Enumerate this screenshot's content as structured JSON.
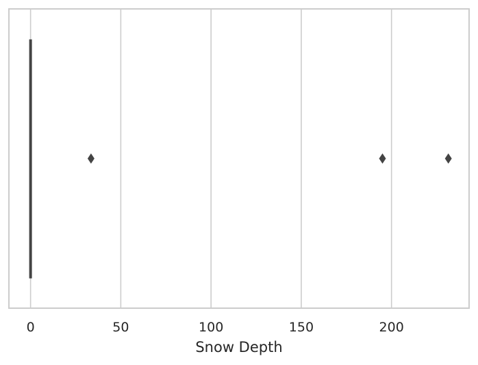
{
  "chart_data": {
    "type": "box",
    "orientation": "horizontal",
    "xlabel": "Snow Depth",
    "ylabel": "",
    "xlim": [
      -12,
      243
    ],
    "xticks": [
      0,
      50,
      100,
      150,
      200
    ],
    "tick_labels": [
      "0",
      "50",
      "100",
      "150",
      "200"
    ],
    "grid": "vertical",
    "box": {
      "min": 0,
      "q1": 0,
      "median": 0,
      "q3": 0,
      "max": 0
    },
    "outliers": [
      33.5,
      195,
      231.5
    ],
    "colors": {
      "grid": "#cccccc",
      "spine": "#cccccc",
      "box": "#444444",
      "outlier": "#444444"
    }
  }
}
